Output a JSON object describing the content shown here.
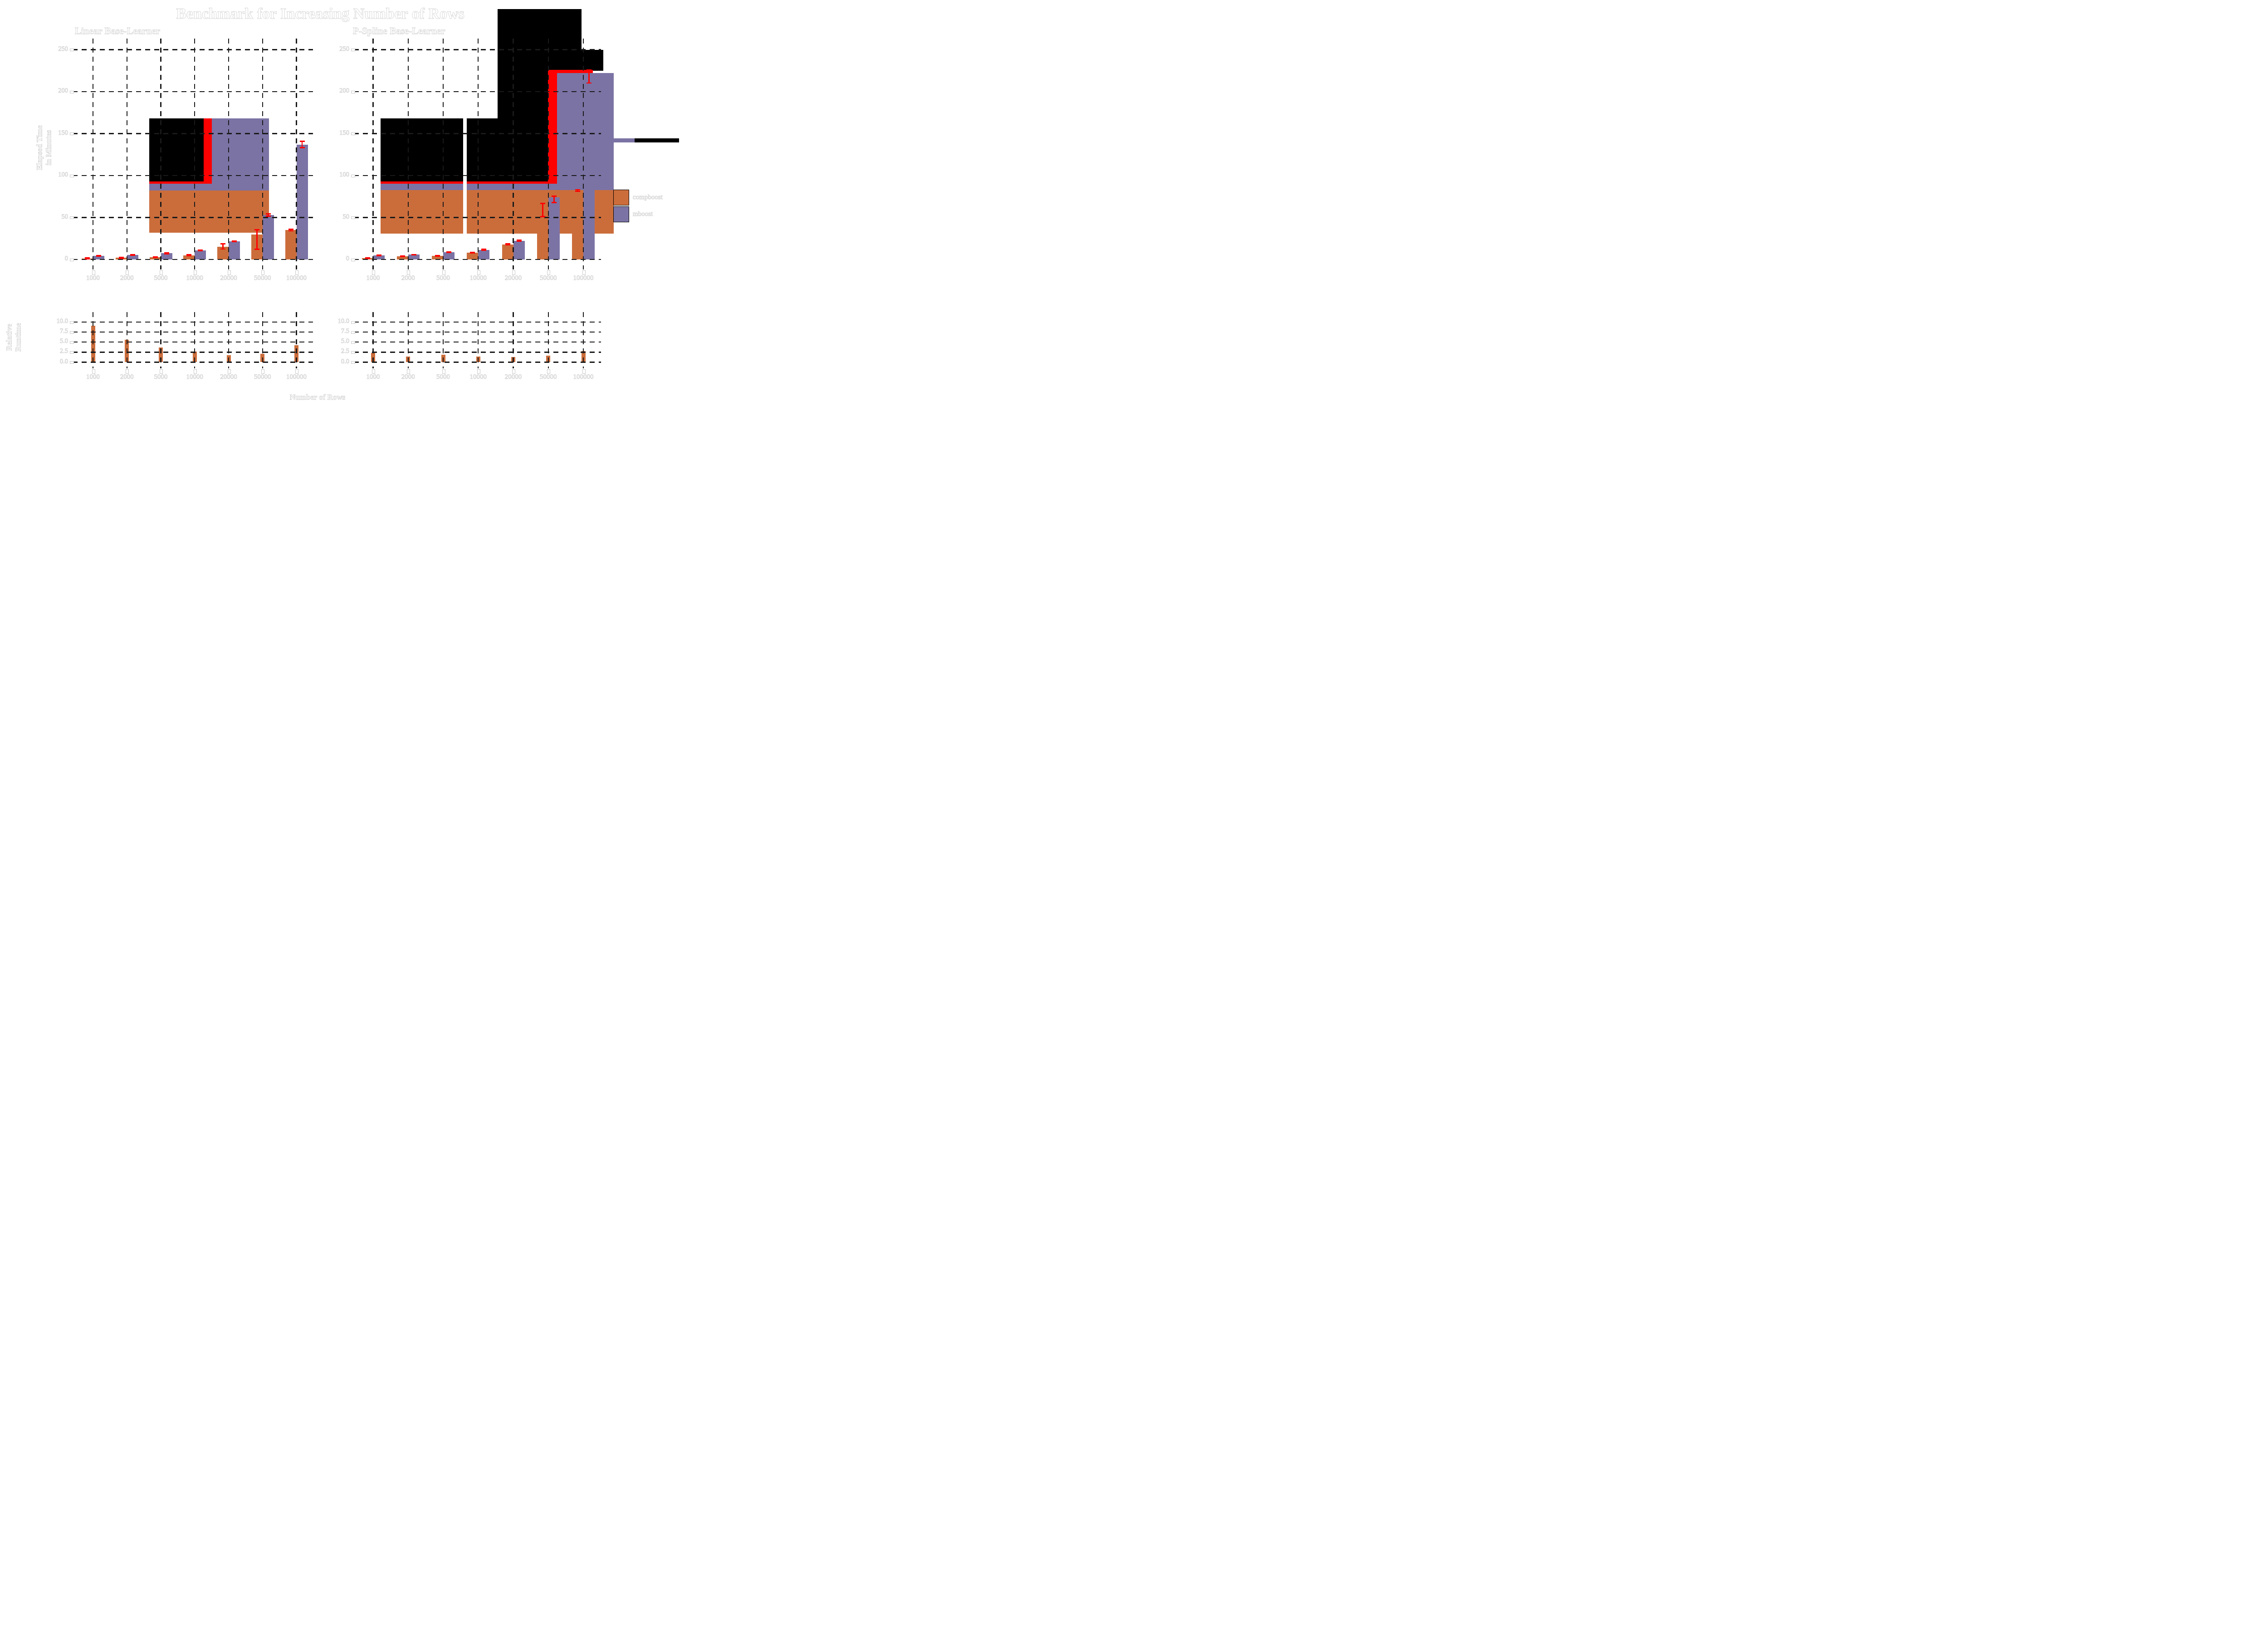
{
  "title": "Benchmark for Increasing Number of Rows",
  "x_axis_title": "Number of Rows",
  "legend": {
    "items": [
      {
        "label": "compboost",
        "color": "#CB6D3B"
      },
      {
        "label": "mboost",
        "color": "#7B73A4"
      }
    ]
  },
  "colors": {
    "compboost": "#CB6D3B",
    "mboost": "#7B73A4",
    "error": "#FF0000",
    "glitch_black": "#000000",
    "background": "#FFFFFF",
    "gridline": "#1A1A1A",
    "text": "#FFFFFF",
    "text_outline": "#D7D7D7"
  },
  "chart_data": [
    {
      "type": "bar",
      "title": "Linear Base-Learner",
      "ylabel": "Elapsed Time in Minutes",
      "ylabel_lines": [
        "Elapsed Time",
        "in Minutes"
      ],
      "categories": [
        "1000",
        "2000",
        "5000",
        "10000",
        "20000",
        "50000",
        "100000"
      ],
      "yticks": {
        "values": [
          0,
          50,
          100,
          150,
          200,
          250
        ],
        "labels": [
          "0",
          "50",
          "100",
          "150",
          "200",
          "250"
        ]
      },
      "ylim": [
        0,
        263
      ],
      "grid": true,
      "series": [
        {
          "name": "compboost",
          "color": "compboost",
          "values": [
            1.0,
            2.0,
            2.9,
            5.0,
            15.3,
            30,
            35
          ],
          "err_lo": [
            0.5,
            1.3,
            2.3,
            4.4,
            12.2,
            12.0,
            33.8
          ],
          "err_hi": [
            2.3,
            2.8,
            3.5,
            5.7,
            18.8,
            35.5,
            36.3
          ]
        },
        {
          "name": "mboost",
          "color": "mboost",
          "values": [
            4.1,
            5.2,
            7.3,
            10.8,
            21.7,
            53,
            137
          ],
          "err_lo": [
            3.6,
            4.7,
            6.6,
            10.2,
            21.0,
            51.5,
            133
          ],
          "err_hi": [
            4.6,
            5.7,
            8.0,
            11.4,
            22.4,
            54.5,
            141
          ]
        }
      ],
      "glitch_artifacts": [
        {
          "color": "mboost",
          "x0": 2.66,
          "x1": 6.19,
          "v0": 82.3,
          "v1": 168
        },
        {
          "color": "glitch_black",
          "x0": 2.66,
          "x1": 4.26,
          "v0": 92.5,
          "v1": 168
        },
        {
          "color": "error",
          "x0": 4.26,
          "x1": 4.5,
          "v0": 90.5,
          "v1": 168
        },
        {
          "color": "error",
          "x0": 2.66,
          "x1": 4.5,
          "v0": 90.5,
          "v1": 92.8
        },
        {
          "color": "compboost",
          "x0": 2.66,
          "x1": 6.19,
          "v0": 32,
          "v1": 82.3
        }
      ]
    },
    {
      "type": "bar",
      "title": "P-Spline Base-Learner",
      "ylabel": "Elapsed Time in Minutes",
      "ylabel_lines": [],
      "categories": [
        "1000",
        "2000",
        "5000",
        "10000",
        "20000",
        "50000",
        "100000"
      ],
      "yticks": {
        "values": [
          0,
          50,
          100,
          150,
          200,
          250
        ],
        "labels": [
          "0",
          "50",
          "100",
          "150",
          "200",
          "250"
        ]
      },
      "ylim": [
        0,
        263
      ],
      "grid": true,
      "series": [
        {
          "name": "compboost",
          "color": "compboost",
          "values": [
            1.5,
            3.7,
            4.2,
            7.9,
            18.1,
            59,
            82
          ],
          "err_lo": [
            0.9,
            3.2,
            3.7,
            7.3,
            17.2,
            51,
            81
          ],
          "err_hi": [
            2.1,
            4.2,
            4.8,
            8.5,
            19.0,
            67,
            83.5
          ]
        },
        {
          "name": "mboost",
          "color": "mboost",
          "values": [
            4.9,
            5.7,
            8.7,
            11.6,
            22.2,
            74,
            222
          ],
          "err_lo": [
            4.4,
            5.2,
            8.1,
            11.0,
            21.4,
            67.5,
            210
          ],
          "err_hi": [
            5.4,
            6.2,
            9.3,
            12.2,
            23.0,
            75.5,
            226
          ]
        }
      ],
      "glitch_artifacts": [
        {
          "color": "mboost",
          "x0": 6.25,
          "x1": 7.87,
          "v0": 82.8,
          "v1": 222
        },
        {
          "color": "glitch_black",
          "x0": 4.55,
          "x1": 6.95,
          "v0": 226,
          "v1": 298.3
        },
        {
          "color": "glitch_black",
          "x0": 4.55,
          "x1": 5.99,
          "v0": 91.8,
          "v1": 226
        },
        {
          "color": "glitch_black",
          "x0": 6.95,
          "x1": 7.57,
          "v0": 225,
          "v1": 250
        },
        {
          "color": "mboost",
          "x0": 1.21,
          "x1": 7.87,
          "v0": 82.8,
          "v1": 91.8
        },
        {
          "color": "glitch_black",
          "x0": 1.21,
          "x1": 3.576,
          "v0": 92.5,
          "v1": 168
        },
        {
          "color": "glitch_black",
          "x0": 3.67,
          "x1": 4.55,
          "v0": 92.5,
          "v1": 168
        },
        {
          "color": "error",
          "x0": 1.21,
          "x1": 3.576,
          "v0": 90.5,
          "v1": 92.8
        },
        {
          "color": "error",
          "x0": 3.67,
          "x1": 5.99,
          "v0": 90.5,
          "v1": 92.8
        },
        {
          "color": "error",
          "x0": 5.99,
          "x1": 6.25,
          "v0": 90.5,
          "v1": 226
        },
        {
          "color": "error",
          "x0": 5.99,
          "x1": 7.27,
          "v0": 222,
          "v1": 226
        },
        {
          "color": "compboost",
          "x0": 1.21,
          "x1": 7.87,
          "v0": 31,
          "v1": 82.8
        },
        {
          "color": "mboost",
          "x0": 7.87,
          "x1": 8.46,
          "v0": 139.7,
          "v1": 144.3
        },
        {
          "color": "glitch_black",
          "x0": 8.46,
          "x1": 9.73,
          "v0": 139.7,
          "v1": 144.3
        },
        {
          "color": "background",
          "x0": 3.576,
          "x1": 3.67,
          "v0": 31,
          "v1": 168,
          "gap": true
        }
      ]
    },
    {
      "type": "bar",
      "title": "",
      "ylabel": "Relative Runtime",
      "ylabel_lines": [
        "Relative",
        "Runtime"
      ],
      "categories": [
        "1000",
        "2000",
        "5000",
        "10000",
        "20000",
        "50000",
        "100000"
      ],
      "yticks": {
        "values": [
          0,
          2.5,
          5,
          7.5,
          10
        ],
        "labels": [
          "0.0",
          "2.5",
          "5.0",
          "7.5",
          "10.0"
        ]
      },
      "ylim": [
        0,
        12.5
      ],
      "grid": true,
      "series": [
        {
          "name": "compboost",
          "color": "compboost",
          "values": [
            9.1,
            5.6,
            3.7,
            2.7,
            1.7,
            2.1,
            4.2
          ]
        }
      ],
      "glitch_artifacts": []
    },
    {
      "type": "bar",
      "title": "",
      "ylabel": "Relative Runtime",
      "ylabel_lines": [],
      "categories": [
        "1000",
        "2000",
        "5000",
        "10000",
        "20000",
        "50000",
        "100000"
      ],
      "yticks": {
        "values": [
          0,
          2.5,
          5,
          7.5,
          10
        ],
        "labels": [
          "0.0",
          "2.5",
          "5.0",
          "7.5",
          "10.0"
        ]
      },
      "ylim": [
        0,
        12.5
      ],
      "grid": true,
      "series": [
        {
          "name": "compboost",
          "color": "compboost",
          "values": [
            2.3,
            1.4,
            1.9,
            1.4,
            1.3,
            1.6,
            2.8
          ]
        }
      ],
      "glitch_artifacts": []
    }
  ]
}
